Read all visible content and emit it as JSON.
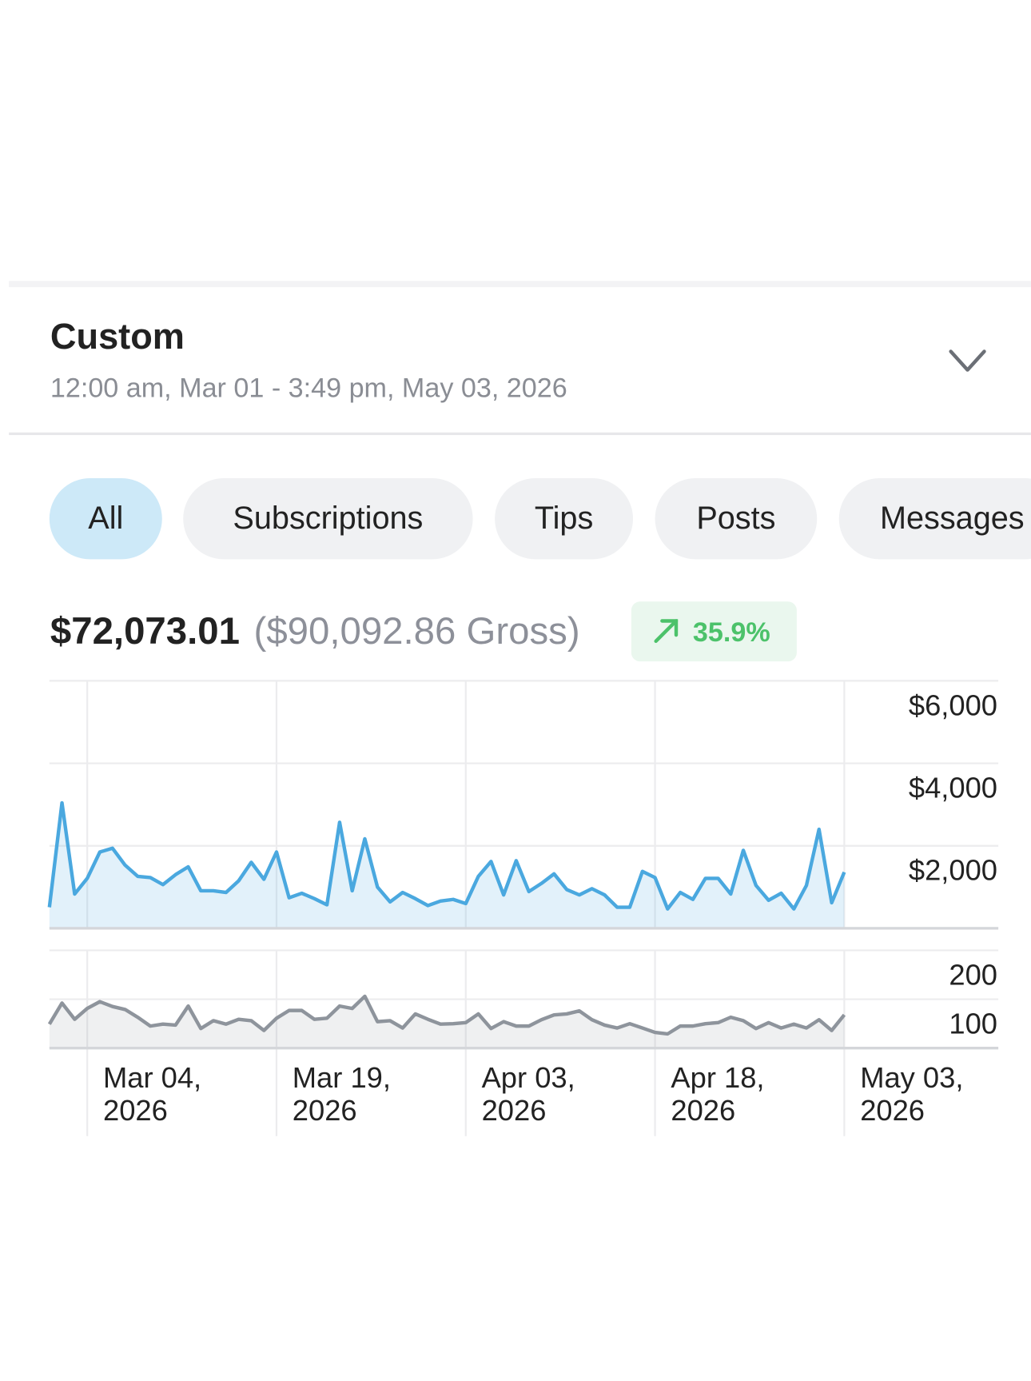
{
  "header": {
    "title": "Custom",
    "subtitle": "12:00 am, Mar 01 - 3:49 pm, May 03, 2026"
  },
  "filters": [
    "All",
    "Subscriptions",
    "Tips",
    "Posts",
    "Messages"
  ],
  "summary": {
    "net": "$72,073.01",
    "gross": "($90,092.86 Gross)",
    "change": "35.9%"
  },
  "chart_data": [
    {
      "type": "area",
      "series": [
        {
          "color": "#4aa8df",
          "values": [
            510,
            3040,
            830,
            1210,
            1850,
            1940,
            1530,
            1260,
            1230,
            1060,
            1300,
            1490,
            910,
            910,
            870,
            1150,
            1600,
            1190,
            1850,
            740,
            850,
            720,
            570,
            2570,
            910,
            2170,
            1000,
            640,
            870,
            720,
            550,
            660,
            700,
            600,
            1260,
            1620,
            810,
            1640,
            890,
            1090,
            1320,
            940,
            810,
            960,
            810,
            510,
            510,
            1380,
            1230,
            470,
            870,
            700,
            1210,
            1210,
            830,
            1890,
            1040,
            680,
            850,
            470,
            1040,
            2400,
            620,
            1360
          ]
        }
      ],
      "x": [
        "2026-03-01",
        "2026-03-02",
        "2026-03-03",
        "2026-03-04",
        "2026-03-05",
        "2026-03-06",
        "2026-03-07",
        "2026-03-08",
        "2026-03-09",
        "2026-03-10",
        "2026-03-11",
        "2026-03-12",
        "2026-03-13",
        "2026-03-14",
        "2026-03-15",
        "2026-03-16",
        "2026-03-17",
        "2026-03-18",
        "2026-03-19",
        "2026-03-20",
        "2026-03-21",
        "2026-03-22",
        "2026-03-23",
        "2026-03-24",
        "2026-03-25",
        "2026-03-26",
        "2026-03-27",
        "2026-03-28",
        "2026-03-29",
        "2026-03-30",
        "2026-03-31",
        "2026-04-01",
        "2026-04-02",
        "2026-04-03",
        "2026-04-04",
        "2026-04-05",
        "2026-04-06",
        "2026-04-07",
        "2026-04-08",
        "2026-04-09",
        "2026-04-10",
        "2026-04-11",
        "2026-04-12",
        "2026-04-13",
        "2026-04-14",
        "2026-04-15",
        "2026-04-16",
        "2026-04-17",
        "2026-04-18",
        "2026-04-19",
        "2026-04-20",
        "2026-04-21",
        "2026-04-22",
        "2026-04-23",
        "2026-04-24",
        "2026-04-25",
        "2026-04-26",
        "2026-04-27",
        "2026-04-28",
        "2026-04-29",
        "2026-04-30",
        "2026-05-01",
        "2026-05-02",
        "2026-05-03"
      ],
      "xlim": [
        "2026-03-01",
        "2026-05-03"
      ],
      "xticks": [
        "2026-03-04",
        "2026-03-19",
        "2026-04-03",
        "2026-04-18",
        "2026-05-03"
      ],
      "ylim": [
        0,
        6000
      ],
      "yticks": [
        {
          "value": 2000,
          "label": "$2,000"
        },
        {
          "value": 4000,
          "label": "$4,000"
        },
        {
          "value": 6000,
          "label": "$6,000"
        }
      ],
      "grid": true
    },
    {
      "type": "area",
      "series": [
        {
          "color": "#8e949c",
          "values": [
            49,
            92,
            59,
            81,
            95,
            85,
            79,
            63,
            45,
            49,
            47,
            86,
            40,
            56,
            49,
            59,
            56,
            36,
            61,
            77,
            77,
            59,
            61,
            86,
            81,
            106,
            54,
            56,
            41,
            70,
            59,
            49,
            50,
            52,
            70,
            40,
            54,
            45,
            45,
            58,
            68,
            70,
            76,
            58,
            47,
            41,
            50,
            41,
            32,
            29,
            45,
            45,
            50,
            52,
            63,
            56,
            40,
            52,
            41,
            49,
            41,
            58,
            36,
            68
          ]
        }
      ],
      "x": [
        "2026-03-01",
        "2026-03-02",
        "2026-03-03",
        "2026-03-04",
        "2026-03-05",
        "2026-03-06",
        "2026-03-07",
        "2026-03-08",
        "2026-03-09",
        "2026-03-10",
        "2026-03-11",
        "2026-03-12",
        "2026-03-13",
        "2026-03-14",
        "2026-03-15",
        "2026-03-16",
        "2026-03-17",
        "2026-03-18",
        "2026-03-19",
        "2026-03-20",
        "2026-03-21",
        "2026-03-22",
        "2026-03-23",
        "2026-03-24",
        "2026-03-25",
        "2026-03-26",
        "2026-03-27",
        "2026-03-28",
        "2026-03-29",
        "2026-03-30",
        "2026-03-31",
        "2026-04-01",
        "2026-04-02",
        "2026-04-03",
        "2026-04-04",
        "2026-04-05",
        "2026-04-06",
        "2026-04-07",
        "2026-04-08",
        "2026-04-09",
        "2026-04-10",
        "2026-04-11",
        "2026-04-12",
        "2026-04-13",
        "2026-04-14",
        "2026-04-15",
        "2026-04-16",
        "2026-04-17",
        "2026-04-18",
        "2026-04-19",
        "2026-04-20",
        "2026-04-21",
        "2026-04-22",
        "2026-04-23",
        "2026-04-24",
        "2026-04-25",
        "2026-04-26",
        "2026-04-27",
        "2026-04-28",
        "2026-04-29",
        "2026-04-30",
        "2026-05-01",
        "2026-05-02",
        "2026-05-03"
      ],
      "xlim": [
        "2026-03-01",
        "2026-05-03"
      ],
      "xticks": [
        {
          "value": "2026-03-04",
          "label": "Mar 04, 2026"
        },
        {
          "value": "2026-03-19",
          "label": "Mar 19, 2026"
        },
        {
          "value": "2026-04-03",
          "label": "Apr 03, 2026"
        },
        {
          "value": "2026-04-18",
          "label": "Apr 18, 2026"
        },
        {
          "value": "2026-05-03",
          "label": "May 03, 2026"
        }
      ],
      "ylim": [
        0,
        200
      ],
      "yticks": [
        100,
        200
      ],
      "grid": true
    }
  ]
}
